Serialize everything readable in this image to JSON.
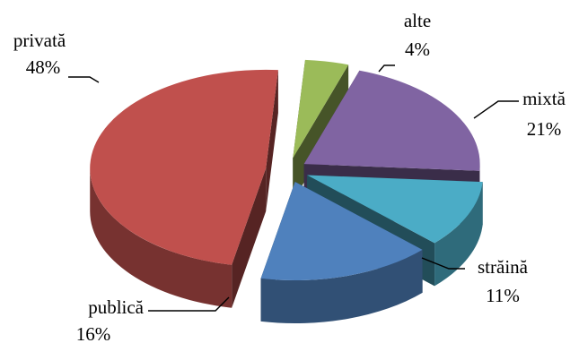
{
  "chart_data": {
    "type": "pie",
    "title": "",
    "legend": "none",
    "style": "3d-exploded",
    "slices": [
      {
        "label": "alte",
        "value": 4,
        "value_label": "4%",
        "color": "#9bbb59"
      },
      {
        "label": "mixtă",
        "value": 21,
        "value_label": "21%",
        "color": "#8064a2"
      },
      {
        "label": "străină",
        "value": 11,
        "value_label": "11%",
        "color": "#4bacc6"
      },
      {
        "label": "publică",
        "value": 16,
        "value_label": "16%",
        "color": "#4f81bd"
      },
      {
        "label": "privată",
        "value": 48,
        "value_label": "48%",
        "color": "#c0504d"
      }
    ]
  }
}
